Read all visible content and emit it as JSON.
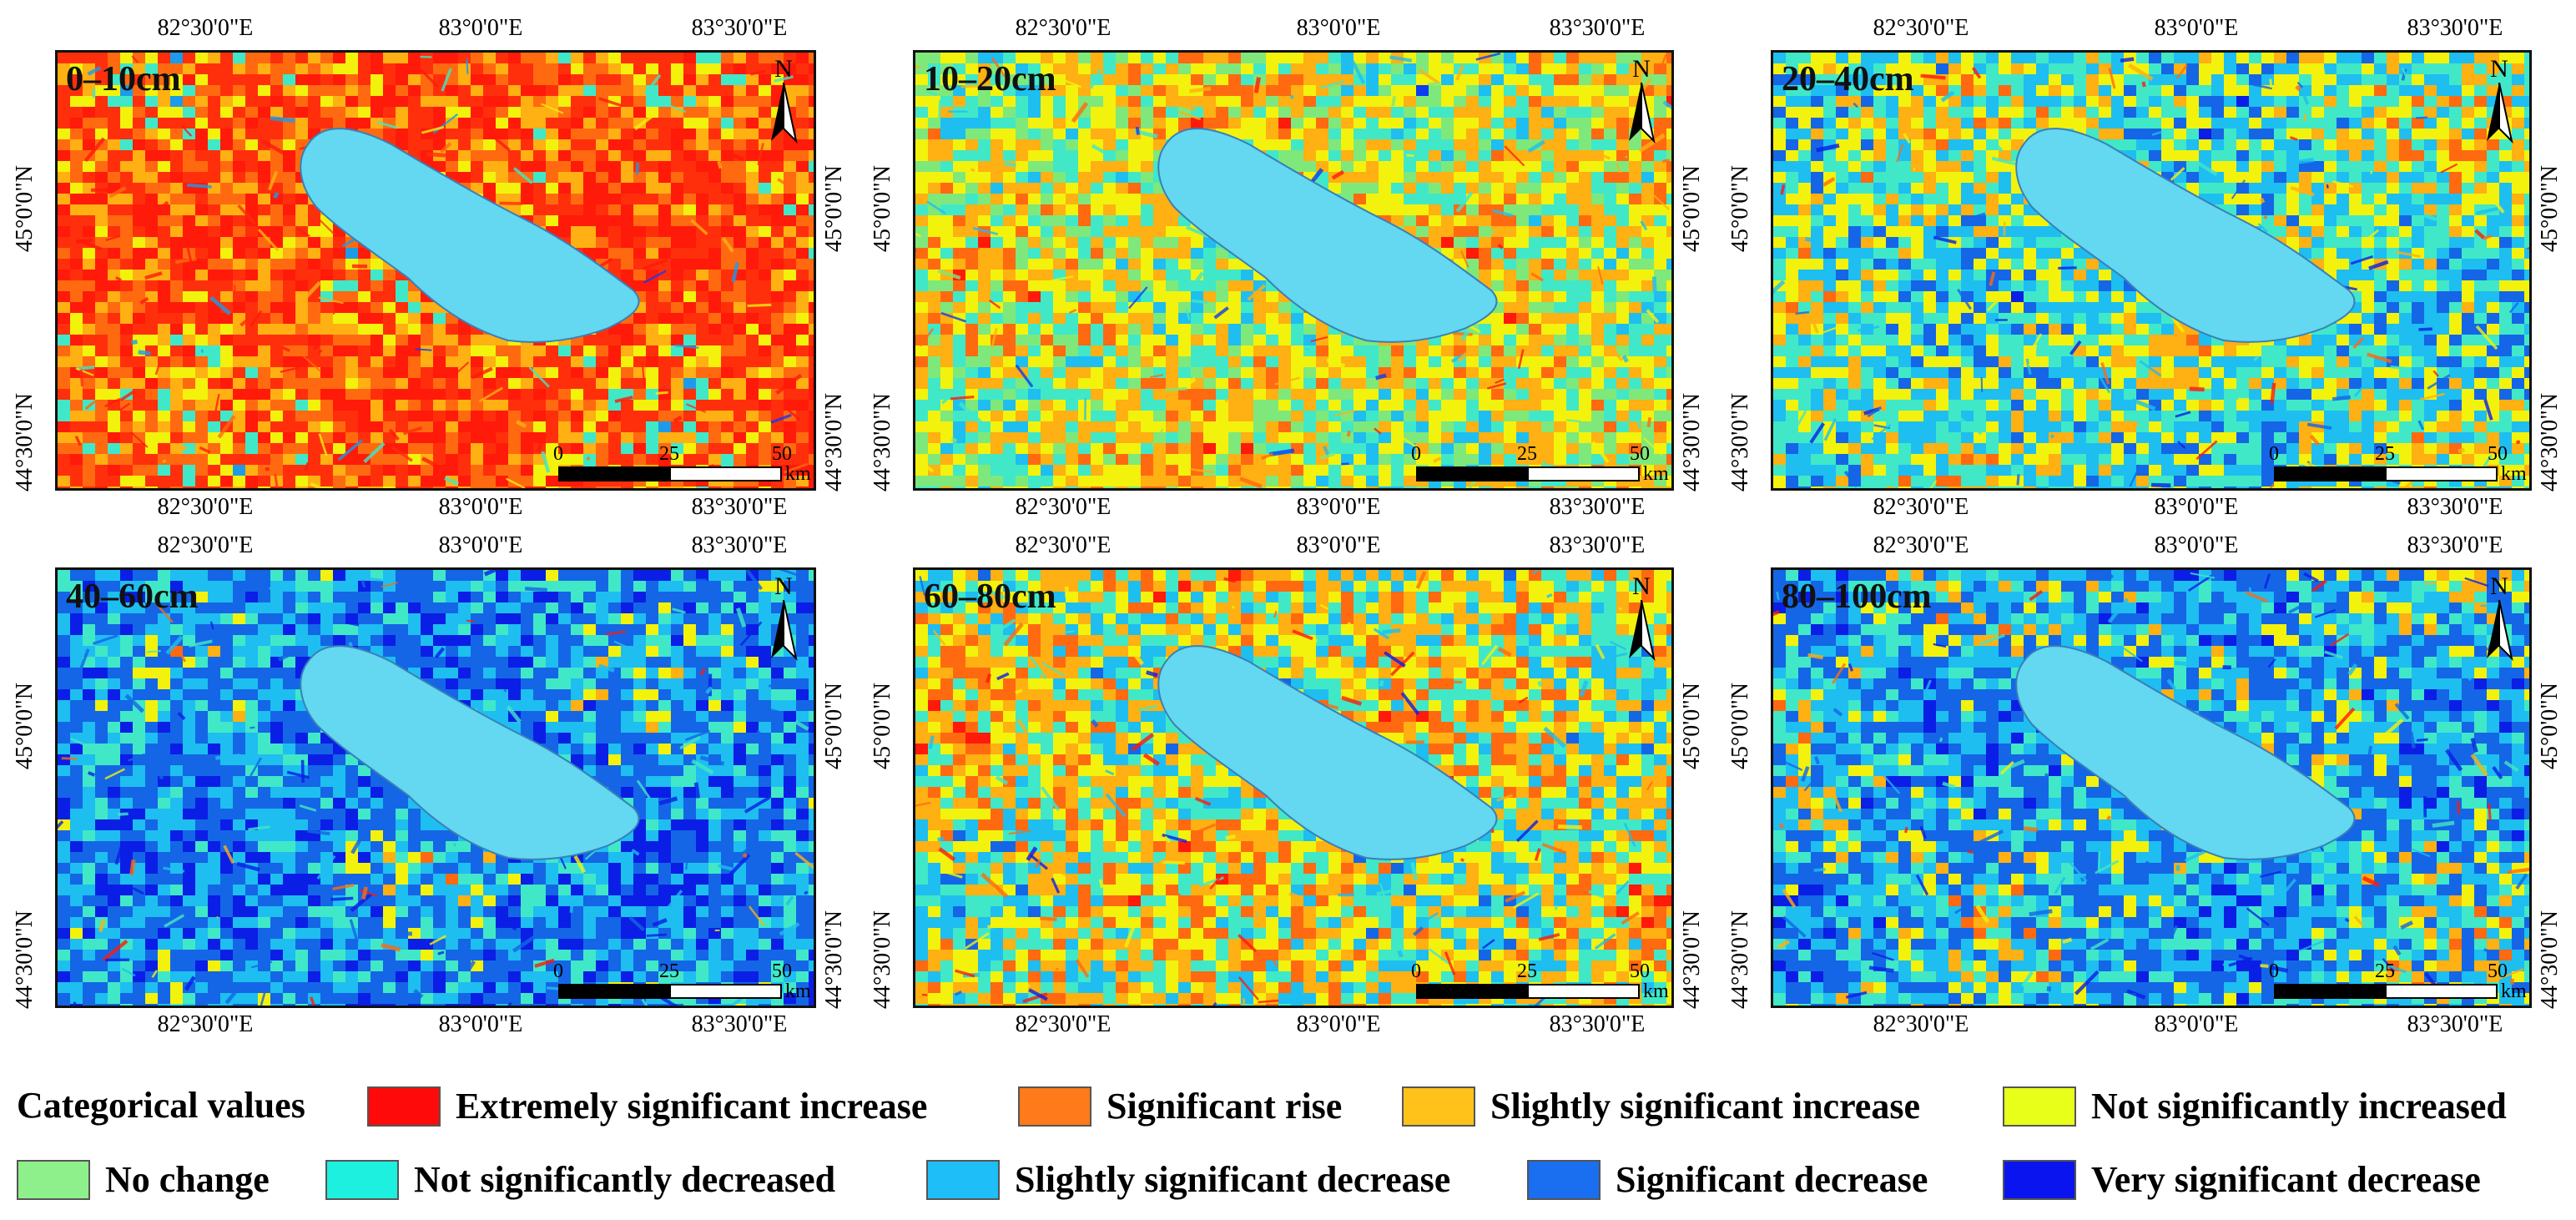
{
  "panels": [
    {
      "label": "0–10cm",
      "palette": [
        "#ff1a0a",
        "#ff2f0c",
        "#ff6a10",
        "#ffb012",
        "#f3f20c",
        "#40e8c8",
        "#1e9be8",
        "#0c3df0"
      ],
      "bias": [
        0.34,
        0.14,
        0.12,
        0.1,
        0.07,
        0.09,
        0.09,
        0.05
      ]
    },
    {
      "label": "10–20cm",
      "palette": [
        "#ff1a0a",
        "#ff6a10",
        "#ffb012",
        "#f3f20c",
        "#7fe87a",
        "#40e8c8",
        "#1ebef0",
        "#0c3df0"
      ],
      "bias": [
        0.14,
        0.12,
        0.16,
        0.14,
        0.08,
        0.14,
        0.14,
        0.08
      ]
    },
    {
      "label": "20–40cm",
      "palette": [
        "#ff1a0a",
        "#ff6a10",
        "#ffb012",
        "#f3f20c",
        "#40e8c8",
        "#1ebef0",
        "#1466e6",
        "#0a1ee6"
      ],
      "bias": [
        0.08,
        0.1,
        0.12,
        0.14,
        0.14,
        0.16,
        0.14,
        0.12
      ]
    },
    {
      "label": "40–60cm",
      "palette": [
        "#ff1a0a",
        "#ff6a10",
        "#ffb012",
        "#f3f20c",
        "#40e8c8",
        "#1ebef0",
        "#1466e6",
        "#0a1ee6"
      ],
      "bias": [
        0.04,
        0.05,
        0.06,
        0.07,
        0.1,
        0.16,
        0.22,
        0.3
      ]
    },
    {
      "label": "60–80cm",
      "palette": [
        "#ff1a0a",
        "#ff6a10",
        "#ffb012",
        "#f3f20c",
        "#40e8c8",
        "#1ebef0",
        "#1466e6",
        "#0a1ee6"
      ],
      "bias": [
        0.16,
        0.14,
        0.14,
        0.13,
        0.12,
        0.13,
        0.1,
        0.08
      ]
    },
    {
      "label": "80–100cm",
      "palette": [
        "#ff1a0a",
        "#ff6a10",
        "#ffb012",
        "#f3f20c",
        "#40e8c8",
        "#1ebef0",
        "#1466e6",
        "#0a1ee6"
      ],
      "bias": [
        0.08,
        0.08,
        0.08,
        0.07,
        0.09,
        0.16,
        0.22,
        0.22
      ]
    }
  ],
  "lake_color": "#63d8f0",
  "north_label": "N",
  "scale": {
    "ticks": [
      "0",
      "25",
      "50"
    ],
    "unit": "km"
  },
  "axes": {
    "lon_labels": [
      "82°30'0\"E",
      "83°0'0\"E",
      "83°30'0\"E"
    ],
    "lat_labels": [
      "45°0'0\"N",
      "44°30'0\"N"
    ]
  },
  "legend": {
    "title": "Categorical values",
    "items": [
      {
        "label": "Extremely significant increase",
        "color": "#ff0a0a"
      },
      {
        "label": "Significant rise",
        "color": "#ff7a1a"
      },
      {
        "label": "Slightly significant increase",
        "color": "#ffc21a"
      },
      {
        "label": "Not significantly increased",
        "color": "#e8ff1a"
      },
      {
        "label": "No change",
        "color": "#8ef08a"
      },
      {
        "label": "Not significantly decreased",
        "color": "#1ef0e0"
      },
      {
        "label": "Slightly significant decrease",
        "color": "#1ebef8"
      },
      {
        "label": "Significant decrease",
        "color": "#1a6ef0"
      },
      {
        "label": "Very significant decrease",
        "color": "#0a14ee"
      }
    ]
  }
}
